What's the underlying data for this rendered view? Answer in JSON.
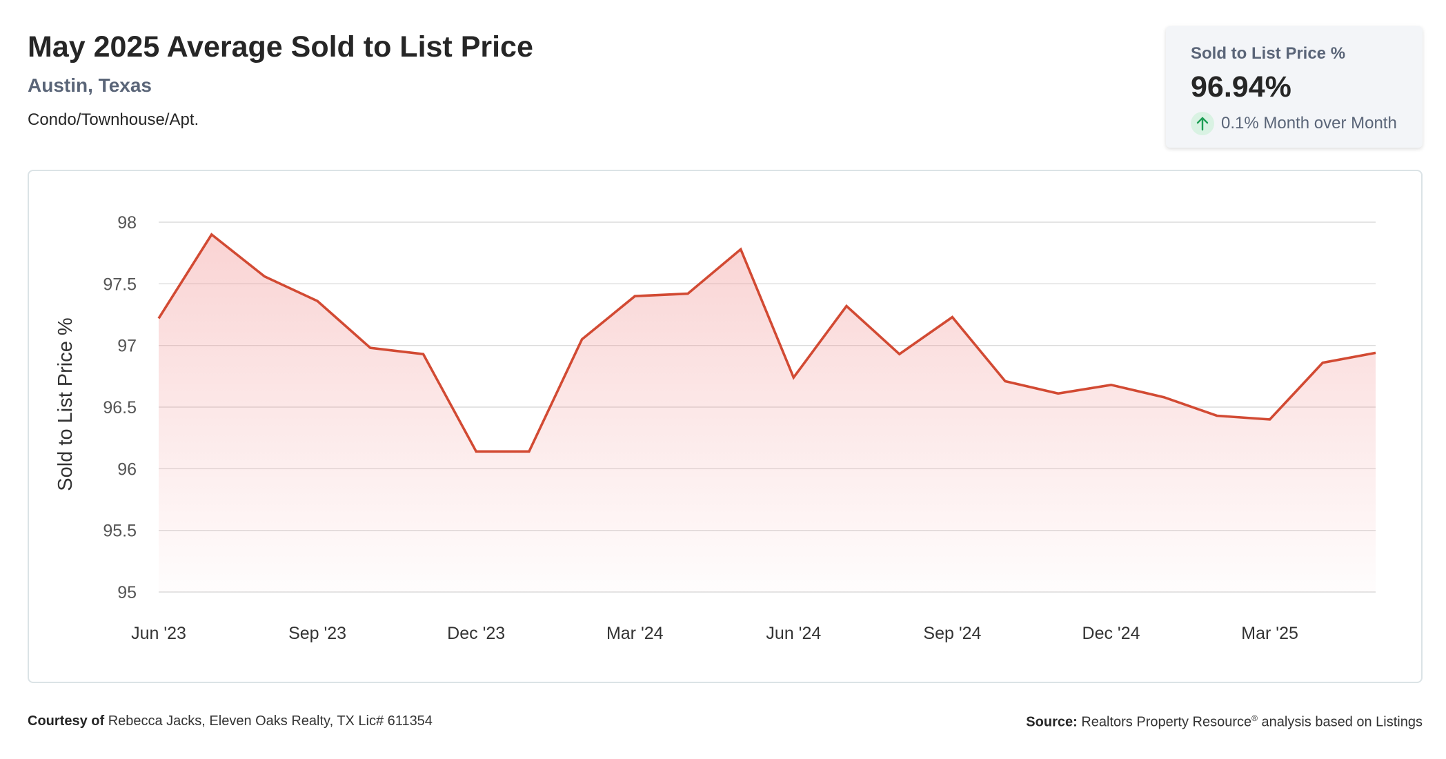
{
  "header": {
    "title": "May 2025 Average Sold to List Price",
    "location": "Austin, Texas",
    "property_type": "Condo/Townhouse/Apt."
  },
  "stat_card": {
    "label": "Sold to List Price %",
    "value": "96.94%",
    "change_text": "0.1% Month over Month",
    "change_direction_icon": "arrow-up-icon",
    "change_color": "#1e9e55"
  },
  "footer": {
    "courtesy_label": "Courtesy of",
    "courtesy_text": "Rebecca Jacks, Eleven Oaks Realty, TX Lic# 611354",
    "source_label": "Source:",
    "source_text_1": "Realtors Property Resource",
    "source_registered": "®",
    "source_text_2": " analysis based on Listings"
  },
  "chart_data": {
    "type": "area",
    "ylabel": "Sold to List Price %",
    "xlabel": "",
    "ylim": [
      95,
      98
    ],
    "yticks": [
      95,
      95.5,
      96,
      96.5,
      97,
      97.5,
      98
    ],
    "ytick_labels": [
      "95",
      "95.5",
      "96",
      "96.5",
      "97",
      "97.5",
      "98"
    ],
    "x": [
      "2023-06",
      "2023-07",
      "2023-08",
      "2023-09",
      "2023-10",
      "2023-11",
      "2023-12",
      "2024-01",
      "2024-02",
      "2024-03",
      "2024-04",
      "2024-05",
      "2024-06",
      "2024-07",
      "2024-08",
      "2024-09",
      "2024-10",
      "2024-11",
      "2024-12",
      "2025-01",
      "2025-02",
      "2025-03",
      "2025-04",
      "2025-05"
    ],
    "xtick_labels": [
      "Jun '23",
      "Sep '23",
      "Dec '23",
      "Mar '24",
      "Jun '24",
      "Sep '24",
      "Dec '24",
      "Mar '25"
    ],
    "xtick_index": [
      0,
      3,
      6,
      9,
      12,
      15,
      18,
      21
    ],
    "series": [
      {
        "values": [
          97.22,
          97.9,
          97.56,
          97.36,
          96.98,
          96.93,
          96.14,
          96.14,
          97.05,
          97.4,
          97.42,
          97.78,
          96.74,
          97.32,
          96.93,
          97.23,
          96.71,
          96.61,
          96.68,
          96.58,
          96.43,
          96.4,
          96.86,
          96.94
        ]
      }
    ],
    "line_color": "#d24a33",
    "fill_color": "#f08c8c",
    "grid": true
  }
}
